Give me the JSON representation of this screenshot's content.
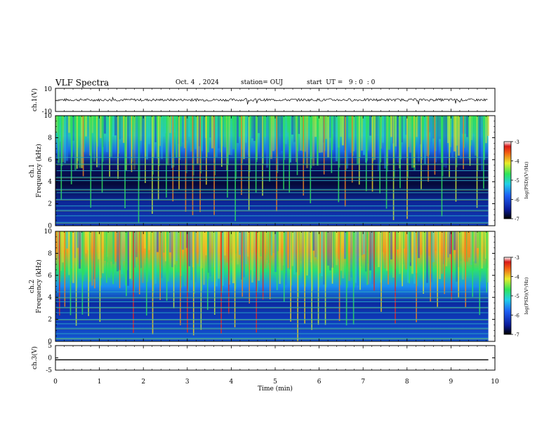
{
  "header": {
    "title": "VLF Spectra",
    "date": "Oct. 4  , 2024",
    "station": "station= OUJ",
    "start": "start  UT =   9 : 0  : 0"
  },
  "colors": {
    "spec_bg": "#0a1a7a",
    "band": "#2aa8c8",
    "accent_line": "#8fd33a"
  },
  "chart_data": [
    {
      "type": "line",
      "name": "waveform-ch1",
      "ylabel": "ch.1(V)",
      "ylim": [
        -10,
        10
      ],
      "yticks": [
        "10",
        "-10"
      ],
      "x": [
        0,
        10
      ],
      "y_level": 0,
      "grid": false
    },
    {
      "type": "heatmap",
      "name": "spectrogram-ch1",
      "ylabel": [
        "ch.1",
        "Frequency  (kHz)"
      ],
      "ylim": [
        0,
        10
      ],
      "yticks": [
        "0",
        "2",
        "4",
        "6",
        "8",
        "10"
      ],
      "xlim": [
        0,
        9.85
      ],
      "colorbar": {
        "label": "log(PSD)(V²/Hz)",
        "ticks": [
          "-3",
          "-4",
          "-5",
          "-6",
          "-7"
        ],
        "range": [
          -7,
          -3
        ]
      },
      "sferic_times": [
        0.12,
        0.35,
        0.48,
        0.62,
        0.79,
        0.93,
        1.05,
        1.22,
        1.41,
        1.57,
        1.72,
        1.88,
        2.03,
        2.19,
        2.33,
        2.51,
        2.66,
        2.8,
        2.95,
        3.11,
        3.28,
        3.42,
        3.6,
        3.77,
        3.9,
        4.08,
        4.22,
        4.39,
        4.55,
        4.7,
        4.86,
        5.02,
        5.18,
        5.31,
        5.49,
        5.63,
        5.79,
        5.95,
        6.1,
        6.27,
        6.43,
        6.58,
        6.74,
        6.9,
        7.06,
        7.2,
        7.37,
        7.52,
        7.68,
        7.83,
        7.99,
        8.15,
        8.31,
        8.47,
        8.62,
        8.78,
        8.95,
        9.1,
        9.27,
        9.42,
        9.58,
        9.73
      ],
      "bands_khz": [
        0.3,
        0.9,
        1.4,
        1.8,
        2.4,
        3.0,
        3.3,
        4.1,
        4.4,
        5.0,
        5.6,
        6.2
      ],
      "grid": false
    },
    {
      "type": "heatmap",
      "name": "spectrogram-ch2",
      "ylabel": [
        "ch.2",
        "Frequency  (kHz)"
      ],
      "ylim": [
        0,
        10
      ],
      "yticks": [
        "0",
        "2",
        "4",
        "6",
        "8",
        "10"
      ],
      "xlim": [
        0,
        9.85
      ],
      "colorbar": {
        "label": "log(PSD)(V²/Hz)",
        "ticks": [
          "-3",
          "-4",
          "-5",
          "-6",
          "-7"
        ],
        "range": [
          -7,
          -3
        ]
      },
      "sferic_times": [
        0.08,
        0.2,
        0.33,
        0.46,
        0.6,
        0.74,
        0.88,
        1.0,
        1.15,
        1.3,
        1.45,
        1.6,
        1.76,
        1.9,
        2.06,
        2.2,
        2.37,
        2.52,
        2.68,
        2.83,
        2.99,
        3.13,
        3.3,
        3.45,
        3.61,
        3.76,
        3.93,
        4.07,
        4.24,
        4.4,
        4.56,
        4.71,
        4.87,
        5.03,
        5.19,
        5.34,
        5.5,
        5.66,
        5.82,
        5.97,
        6.13,
        6.29,
        6.45,
        6.61,
        6.77,
        6.92,
        7.08,
        7.24,
        7.4,
        7.56,
        7.72,
        7.88,
        8.04,
        8.2,
        8.36,
        8.52,
        8.68,
        8.84,
        9.0,
        9.16,
        9.32,
        9.48,
        9.64,
        9.8
      ],
      "bands_khz": [
        0.3,
        0.7,
        1.2,
        1.6,
        2.0,
        2.6,
        3.1,
        3.6,
        4.0,
        4.5
      ],
      "grid": false
    },
    {
      "type": "line",
      "name": "waveform-ch3",
      "ylabel": "ch.3(V)",
      "ylim": [
        -5,
        5
      ],
      "yticks": [
        "5",
        "0",
        "-5"
      ],
      "x": [
        0,
        9.85
      ],
      "y_level": -0.8,
      "grid": false
    }
  ],
  "x_axis": {
    "label": "Time  (min)",
    "ticks": [
      "0",
      "1",
      "2",
      "3",
      "4",
      "5",
      "6",
      "7",
      "8",
      "9",
      "10"
    ],
    "xlim": [
      0,
      10
    ]
  }
}
